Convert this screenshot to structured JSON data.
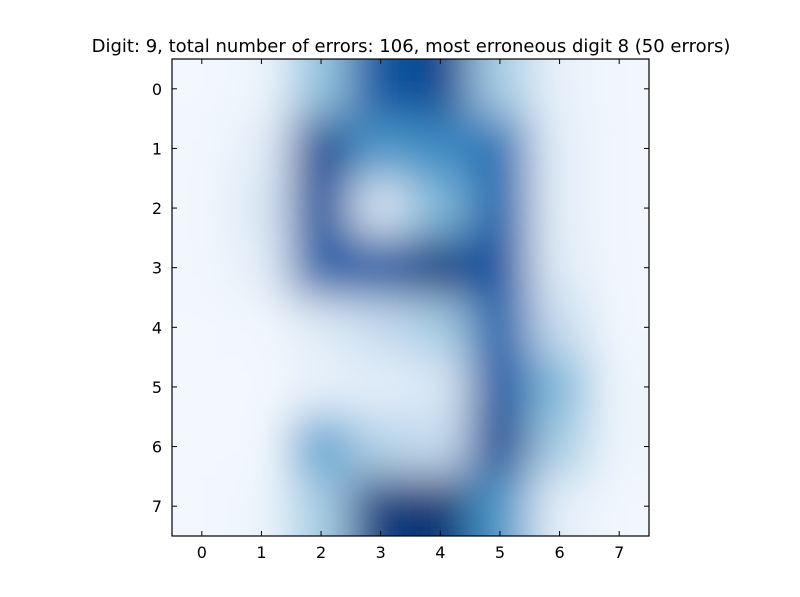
{
  "chart_data": {
    "type": "heatmap",
    "title": "Digit: 9, total number of errors: 106, most erroneous digit 8 (50 errors)",
    "xlabel": "",
    "ylabel": "",
    "x_ticks": [
      "0",
      "1",
      "2",
      "3",
      "4",
      "5",
      "6",
      "7"
    ],
    "y_ticks": [
      "0",
      "1",
      "2",
      "3",
      "4",
      "5",
      "6",
      "7"
    ],
    "xlim": [
      -0.5,
      7.5
    ],
    "ylim": [
      7.5,
      -0.5
    ],
    "colormap": "Blues",
    "interpolation": "bicubic",
    "colorscale_range": [
      0,
      1
    ],
    "grid": false,
    "values": [
      [
        0.02,
        0.05,
        0.4,
        0.85,
        0.9,
        0.35,
        0.08,
        0.03
      ],
      [
        0.03,
        0.1,
        0.9,
        0.6,
        0.65,
        0.75,
        0.1,
        0.03
      ],
      [
        0.03,
        0.15,
        0.88,
        0.15,
        0.45,
        0.8,
        0.1,
        0.03
      ],
      [
        0.03,
        0.1,
        0.82,
        0.85,
        0.95,
        0.85,
        0.12,
        0.03
      ],
      [
        0.02,
        0.03,
        0.12,
        0.25,
        0.35,
        0.8,
        0.25,
        0.03
      ],
      [
        0.02,
        0.02,
        0.08,
        0.1,
        0.15,
        0.85,
        0.45,
        0.05
      ],
      [
        0.02,
        0.02,
        0.55,
        0.3,
        0.25,
        0.9,
        0.35,
        0.05
      ],
      [
        0.02,
        0.05,
        0.35,
        0.95,
        0.98,
        0.6,
        0.1,
        0.03
      ]
    ]
  }
}
